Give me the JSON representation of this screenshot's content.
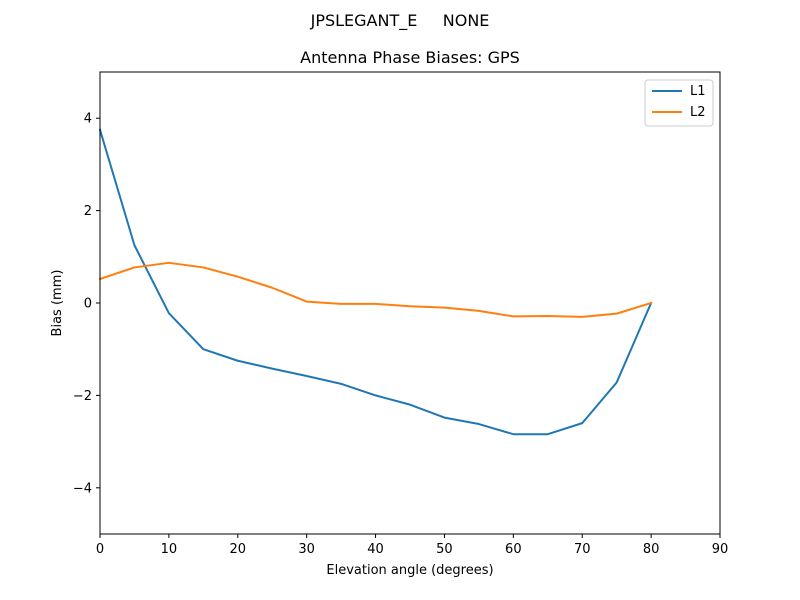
{
  "chart_data": {
    "type": "line",
    "suptitle": "JPSLEGANT_E     NONE",
    "title": "Antenna Phase Biases: GPS",
    "xlabel": "Elevation angle (degrees)",
    "ylabel": "Bias (mm)",
    "xlim": [
      0,
      90
    ],
    "ylim": [
      -5,
      5
    ],
    "xticks": [
      0,
      10,
      20,
      30,
      40,
      50,
      60,
      70,
      80,
      90
    ],
    "yticks": [
      -4,
      -2,
      0,
      2,
      4
    ],
    "xtick_labels": [
      "0",
      "10",
      "20",
      "30",
      "40",
      "50",
      "60",
      "70",
      "80",
      "90"
    ],
    "ytick_labels": [
      "−4",
      "−2",
      "0",
      "2",
      "4"
    ],
    "grid": false,
    "legend_position": "top-right",
    "x": [
      0,
      5,
      10,
      15,
      20,
      25,
      30,
      35,
      40,
      45,
      50,
      55,
      60,
      65,
      70,
      75,
      80
    ],
    "series": [
      {
        "name": "L1",
        "color": "#1f77b4",
        "values": [
          3.75,
          1.25,
          -0.22,
          -1.0,
          -1.25,
          -1.42,
          -1.58,
          -1.75,
          -2.0,
          -2.2,
          -2.48,
          -2.62,
          -2.84,
          -2.84,
          -2.6,
          -1.72,
          0.0
        ]
      },
      {
        "name": "L2",
        "color": "#ff7f0e",
        "values": [
          0.52,
          0.77,
          0.87,
          0.77,
          0.57,
          0.33,
          0.03,
          -0.02,
          -0.02,
          -0.07,
          -0.1,
          -0.17,
          -0.29,
          -0.28,
          -0.3,
          -0.23,
          0.0
        ]
      }
    ]
  }
}
